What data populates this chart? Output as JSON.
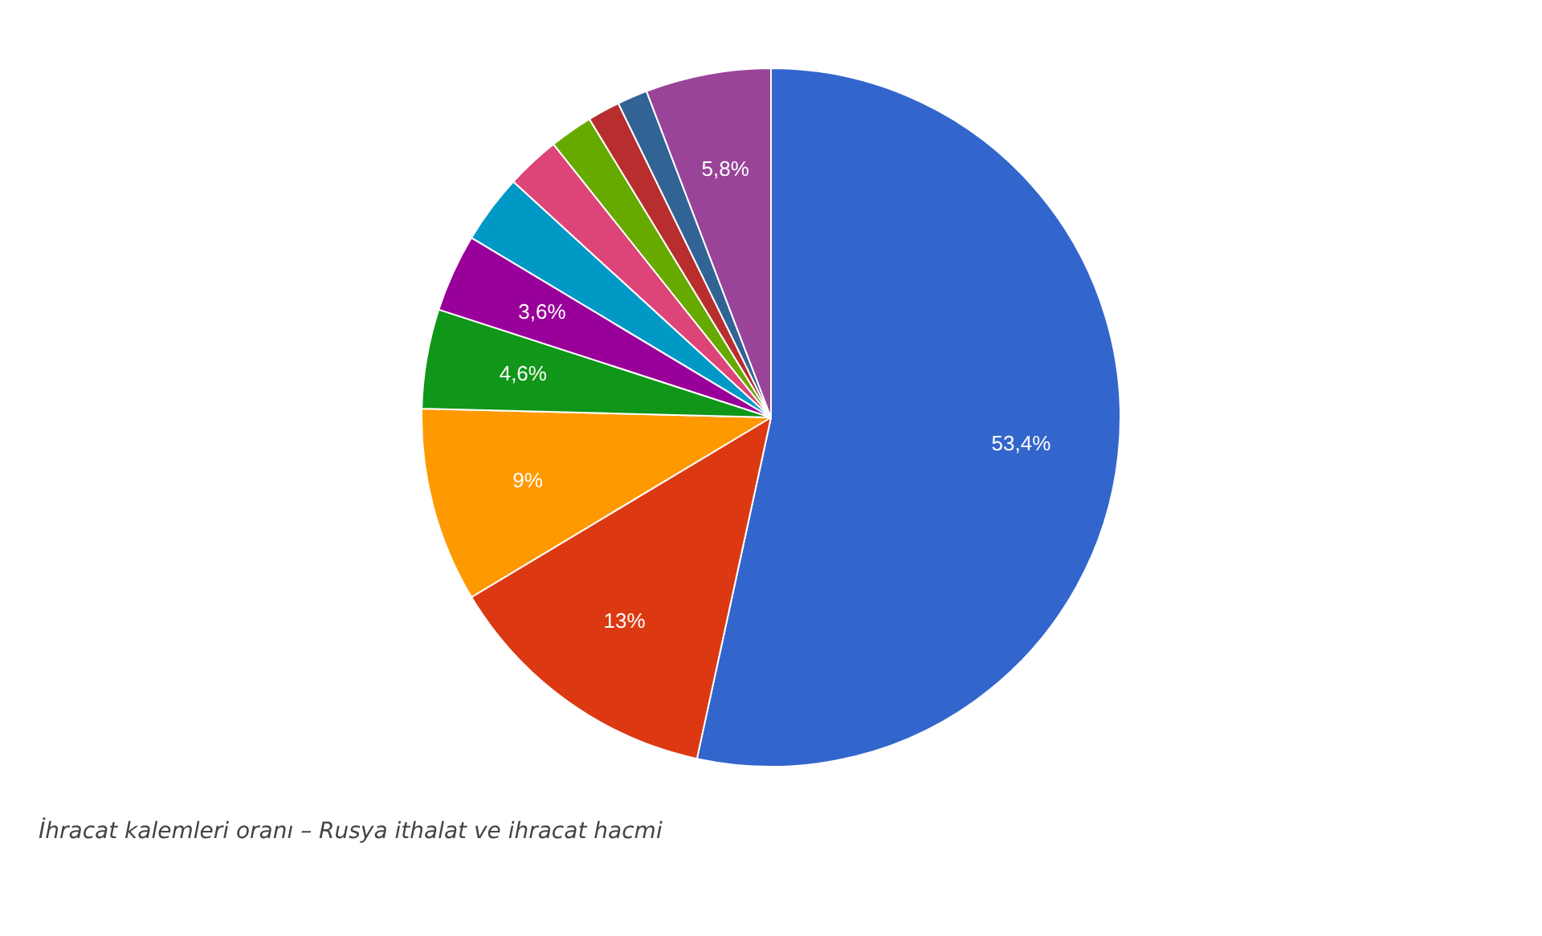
{
  "chart_data": {
    "type": "pie",
    "categories": [
      null,
      null,
      null,
      null,
      null,
      null,
      null,
      null,
      null,
      null,
      null
    ],
    "values": [
      53.4,
      13,
      9,
      4.6,
      3.6,
      3.2,
      2.5,
      2.0,
      1.5,
      1.4,
      5.8
    ],
    "value_labels": [
      "53,4%",
      "13%",
      "9%",
      "4,6%",
      "3,6%",
      null,
      null,
      null,
      null,
      null,
      "5,8%"
    ],
    "colors": [
      "#3366cc",
      "#dc3912",
      "#ff9900",
      "#109618",
      "#990099",
      "#0099c6",
      "#dd4477",
      "#66aa00",
      "#b82e2e",
      "#316395",
      "#994499"
    ],
    "legend": false,
    "annotations": [
      "İhracat kalemleri oranı – Rusya ithalat ve ihracat hacmi"
    ]
  }
}
